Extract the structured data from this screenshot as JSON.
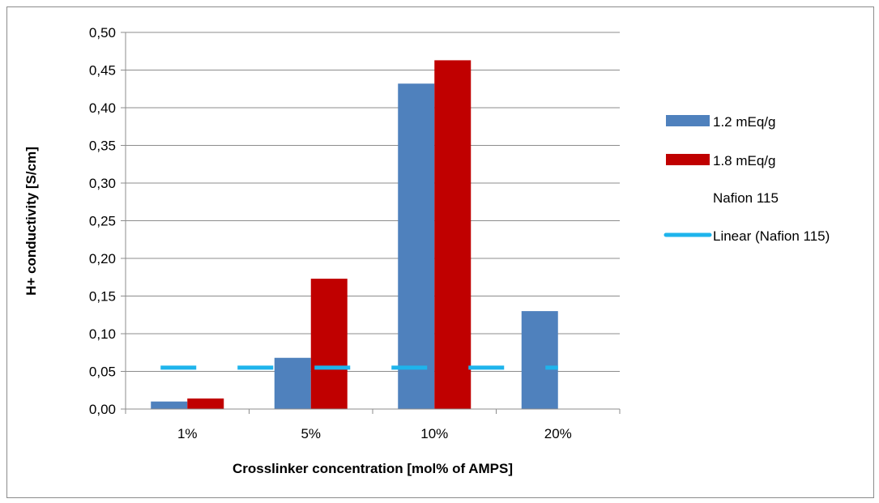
{
  "chart_data": {
    "type": "bar",
    "title": "",
    "xlabel": "Crosslinker concentration [mol% of AMPS]",
    "ylabel": "H+ conductivity [S/cm]",
    "categories": [
      "1%",
      "5%",
      "10%",
      "20%"
    ],
    "series": [
      {
        "name": "1.2 mEq/g",
        "color": "#4f81bd",
        "values": [
          0.01,
          0.068,
          0.432,
          0.13
        ]
      },
      {
        "name": "1.8 mEq/g",
        "color": "#c00000",
        "values": [
          0.014,
          0.173,
          0.463,
          0
        ]
      },
      {
        "name": "Nafion 115",
        "color": "none",
        "values": [
          0.055,
          0.055,
          0.055,
          0.055
        ]
      }
    ],
    "trendline": {
      "name": "Linear (Nafion 115)",
      "color": "#1eb4ec",
      "value": 0.055
    },
    "ylim": [
      0,
      0.5
    ],
    "ytick_step": 0.05,
    "ytick_labels": [
      "0,00",
      "0,05",
      "0,10",
      "0,15",
      "0,20",
      "0,25",
      "0,30",
      "0,35",
      "0,40",
      "0,45",
      "0,50"
    ],
    "grid": true,
    "legend_position": "right"
  }
}
